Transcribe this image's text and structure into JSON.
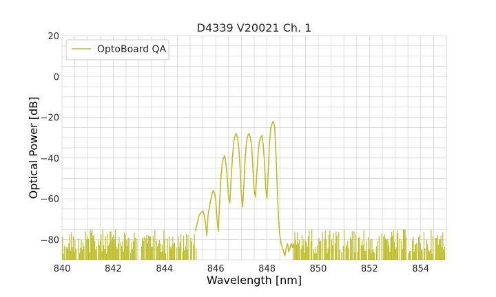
{
  "chart_data": {
    "type": "line",
    "title": "D4339 V20021 Ch. 1",
    "xlabel": "Wavelength [nm]",
    "ylabel": "Optical Power [dB]",
    "xlim": [
      840,
      855
    ],
    "ylim": [
      -90,
      20
    ],
    "xticks": [
      "840",
      "842",
      "844",
      "846",
      "848",
      "850",
      "852",
      "854"
    ],
    "yticks": [
      "20",
      "0",
      "−20",
      "−40",
      "−60",
      "−80"
    ],
    "grid": true,
    "legend_position": "top-left",
    "series": [
      {
        "name": "OptoBoard QA",
        "color": "#bcbd22",
        "noise_floor_dB": -80,
        "x": [
          845.2,
          845.28,
          845.35,
          845.42,
          845.5,
          845.55,
          845.6,
          845.65,
          845.7,
          845.78,
          845.85,
          845.9,
          845.95,
          846.0,
          846.05,
          846.1,
          846.15,
          846.2,
          846.25,
          846.3,
          846.35,
          846.4,
          846.45,
          846.5,
          846.55,
          846.6,
          846.65,
          846.7,
          846.75,
          846.8,
          846.85,
          846.9,
          846.95,
          847.0,
          847.05,
          847.1,
          847.15,
          847.2,
          847.25,
          847.3,
          847.35,
          847.4,
          847.45,
          847.5,
          847.55,
          847.6,
          847.65,
          847.7,
          847.75,
          847.8,
          847.85,
          847.9,
          847.95,
          848.0,
          848.05,
          848.1,
          848.15,
          848.2,
          848.25,
          848.3,
          848.35,
          848.4,
          848.45,
          848.5,
          848.55,
          848.6,
          848.65,
          848.7,
          848.75,
          848.8,
          848.85,
          848.9,
          848.95,
          849.0,
          849.05
        ],
        "y": [
          -76,
          -72,
          -68,
          -67,
          -66,
          -68,
          -72,
          -78,
          -68,
          -62,
          -58,
          -56,
          -57,
          -61,
          -70,
          -76,
          -62,
          -50,
          -43,
          -40,
          -39,
          -43,
          -50,
          -60,
          -62,
          -50,
          -40,
          -32,
          -29,
          -28,
          -30,
          -35,
          -45,
          -58,
          -64,
          -52,
          -40,
          -32,
          -29,
          -28,
          -30,
          -34,
          -45,
          -56,
          -59,
          -48,
          -38,
          -32,
          -30,
          -29,
          -33,
          -42,
          -55,
          -60,
          -46,
          -32,
          -25,
          -23,
          -22,
          -25,
          -38,
          -55,
          -70,
          -78,
          -82,
          -84,
          -86,
          -88,
          -84,
          -82,
          -86,
          -84,
          -82,
          -84,
          -82
        ]
      }
    ]
  }
}
